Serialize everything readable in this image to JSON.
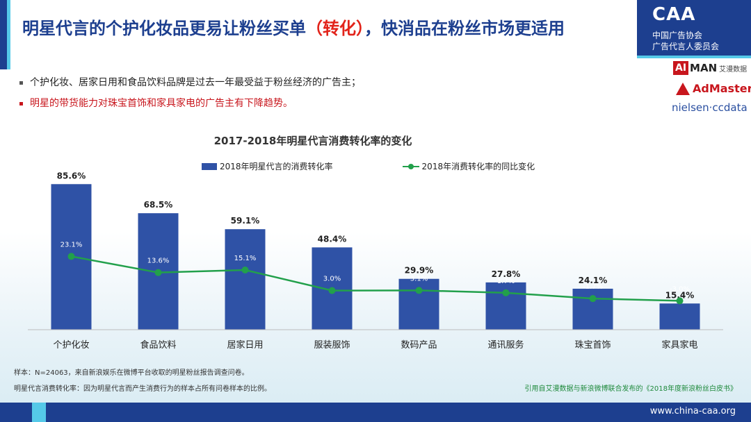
{
  "header": {
    "title_part1": "明星代言的个护化妆品更易让粉丝买单",
    "title_highlight": "（转化）",
    "title_part2": "，快消品在粉丝市场更适用"
  },
  "bullets": [
    {
      "text": "个护化妆、居家日用和食品饮料品牌是过去一年最受益于粉丝经济的广告主；",
      "color": "#222222"
    },
    {
      "text": "明星的带货能力对珠宝首饰和家具家电的广告主有下降趋势。",
      "color": "#c8161d"
    }
  ],
  "brand": {
    "logo_mark": "CAA",
    "logo_line1": "中国广告协会",
    "logo_line2": "广告代言人委员会",
    "partner1_ai": "AI",
    "partner1_man": "MAN",
    "partner1_cn": "艾漫数据",
    "partner2": "AdMaster",
    "partner3": "nielsen·ccdata"
  },
  "chart_data": {
    "type": "bar",
    "title": "2017-2018年明星代言消费转化率的变化",
    "categories": [
      "个护化妆",
      "食品饮料",
      "居家日用",
      "服装服饰",
      "数码产品",
      "通讯服务",
      "珠宝首饰",
      "家具家电"
    ],
    "series": [
      {
        "name": "2018年明星代言的消费转化率",
        "type": "bar",
        "values": [
          85.6,
          68.5,
          59.1,
          48.4,
          29.9,
          27.8,
          24.1,
          15.4
        ],
        "labels": [
          "85.6%",
          "68.5%",
          "59.1%",
          "48.4%",
          "29.9%",
          "27.8%",
          "24.1%",
          "15.4%"
        ],
        "color": "#2f52a6"
      },
      {
        "name": "2018年消费转化率的同比变化",
        "type": "line",
        "values": [
          23.1,
          13.6,
          15.1,
          3.0,
          3.1,
          1.7,
          -1.7,
          -3.0
        ],
        "labels": [
          "23.1%",
          "13.6%",
          "15.1%",
          "3.0%",
          "3.1%",
          "1.7%",
          "-1.7%",
          "-3.0%"
        ],
        "color": "#22a04b"
      }
    ],
    "ylim_bar": [
      0,
      100
    ],
    "ylim_line": [
      -20,
      80
    ],
    "legend_position": "top",
    "grid": false
  },
  "footnotes": {
    "sample": "样本：N=24063，来自新浪娱乐在微博平台收取的明星粉丝报告调查问卷。",
    "definition": "明星代言消费转化率：因为明星代言而产生消费行为的样本占所有问卷样本的比例。",
    "source": "引用自艾漫数据与新浪微博联合发布的《2018年度新浪粉丝白皮书》"
  },
  "footer": {
    "url": "www.china-caa.org"
  },
  "colors": {
    "brand_blue": "#1d3f8f",
    "accent_cyan": "#55c9e8",
    "highlight_red": "#e2231a"
  }
}
